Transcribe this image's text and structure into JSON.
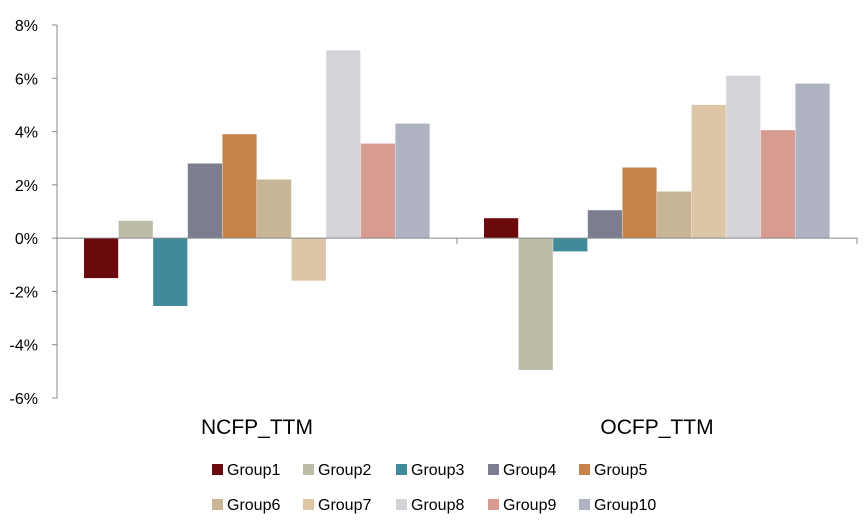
{
  "chart_data": {
    "type": "bar",
    "categories": [
      "NCFP_TTM",
      "OCFP_TTM"
    ],
    "series": [
      {
        "name": "Group1",
        "color": "#6b0a0c",
        "values": [
          -1.5,
          0.75
        ]
      },
      {
        "name": "Group2",
        "color": "#bdbca6",
        "values": [
          0.65,
          -4.95
        ]
      },
      {
        "name": "Group3",
        "color": "#3f8a9b",
        "values": [
          -2.55,
          -0.5
        ]
      },
      {
        "name": "Group4",
        "color": "#7c7e8f",
        "values": [
          2.8,
          1.05
        ]
      },
      {
        "name": "Group5",
        "color": "#c6844a",
        "values": [
          3.9,
          2.65
        ]
      },
      {
        "name": "Group6",
        "color": "#c7b595",
        "values": [
          2.2,
          1.75
        ]
      },
      {
        "name": "Group7",
        "color": "#ddc6a6",
        "values": [
          -1.6,
          5.0
        ]
      },
      {
        "name": "Group8",
        "color": "#d3d4d8",
        "values": [
          7.05,
          6.1
        ]
      },
      {
        "name": "Group9",
        "color": "#d79b91",
        "values": [
          3.55,
          4.05
        ]
      },
      {
        "name": "Group10",
        "color": "#aeb2c1",
        "values": [
          4.3,
          5.8
        ]
      }
    ],
    "ylim": [
      -6,
      8
    ],
    "yticks": [
      -6,
      -4,
      -2,
      0,
      2,
      4,
      6,
      8
    ],
    "ytick_labels": [
      "-6%",
      "-4%",
      "-2%",
      "0%",
      "2%",
      "4%",
      "6%",
      "8%"
    ],
    "grid": false,
    "legend": "bottom"
  }
}
